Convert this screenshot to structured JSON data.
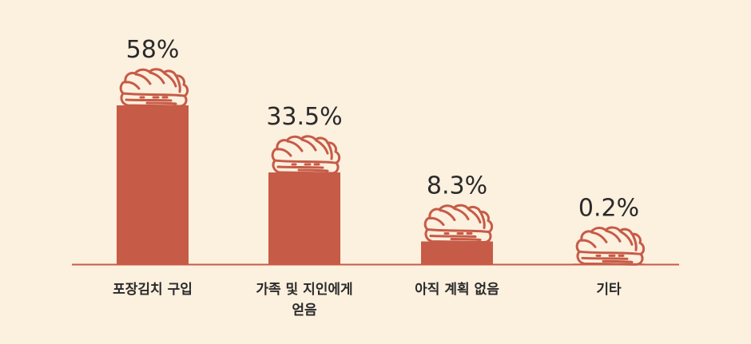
{
  "chart_data": {
    "type": "bar",
    "categories": [
      [
        "포장김치 구입"
      ],
      [
        "가족 및 지인에게",
        "얻음"
      ],
      [
        "아직 계획 없음"
      ],
      [
        "기타"
      ]
    ],
    "values": [
      58,
      33.5,
      8.3,
      0.2
    ],
    "value_labels": [
      "58%",
      "33.5%",
      "8.3%",
      "0.2%"
    ],
    "unit": "%",
    "ylim": [
      0,
      58
    ],
    "grid": false,
    "legend": "none",
    "marker_icon": "napa-cabbage-icon",
    "colors": {
      "bar": "#c65b47",
      "axis": "#c65b47",
      "icon_stroke": "#c65b47",
      "icon_fill": "#fcf0df",
      "background": "#fcf0df",
      "text": "#2a2a2a"
    }
  }
}
